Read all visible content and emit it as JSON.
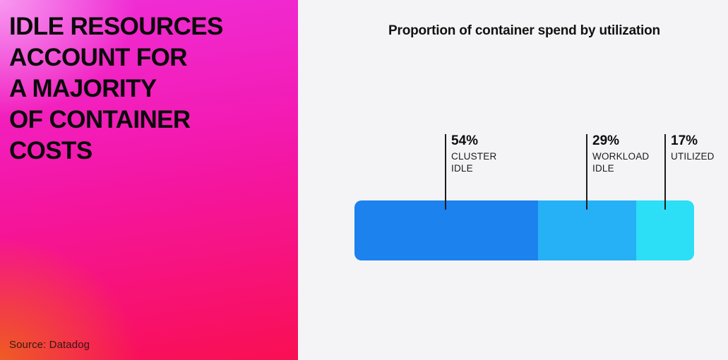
{
  "left_panel": {
    "headline": "IDLE RESOURCES\nACCOUNT FOR\nA MAJORITY\nOF CONTAINER\nCOSTS",
    "source": "Source: Datadog",
    "gradient_colors": {
      "top_left": "#f89ef1",
      "top_right": "#f32bd9",
      "center": "#f5159c",
      "bottom_left": "#ee6020",
      "bottom_right": "#f90f52"
    },
    "text_color": "#0b0b0b"
  },
  "right_panel": {
    "background": "#f4f4f6"
  },
  "chart_data": {
    "type": "bar",
    "variant": "horizontal-stacked",
    "title": "Proportion of container spend by utilization",
    "categories": [
      "CLUSTER IDLE",
      "WORKLOAD IDLE",
      "UTILIZED"
    ],
    "values": [
      54,
      29,
      17
    ],
    "unit": "%",
    "xlim": [
      0,
      100
    ],
    "grid": false,
    "legend_position": "none",
    "segments": [
      {
        "pct": "54%",
        "label": "CLUSTER\nIDLE",
        "value": 54,
        "color": "#1b82ee"
      },
      {
        "pct": "29%",
        "label": "WORKLOAD\nIDLE",
        "value": 29,
        "color": "#26b0f6"
      },
      {
        "pct": "17%",
        "label": "UTILIZED",
        "value": 17,
        "color": "#2cdef6"
      }
    ]
  }
}
